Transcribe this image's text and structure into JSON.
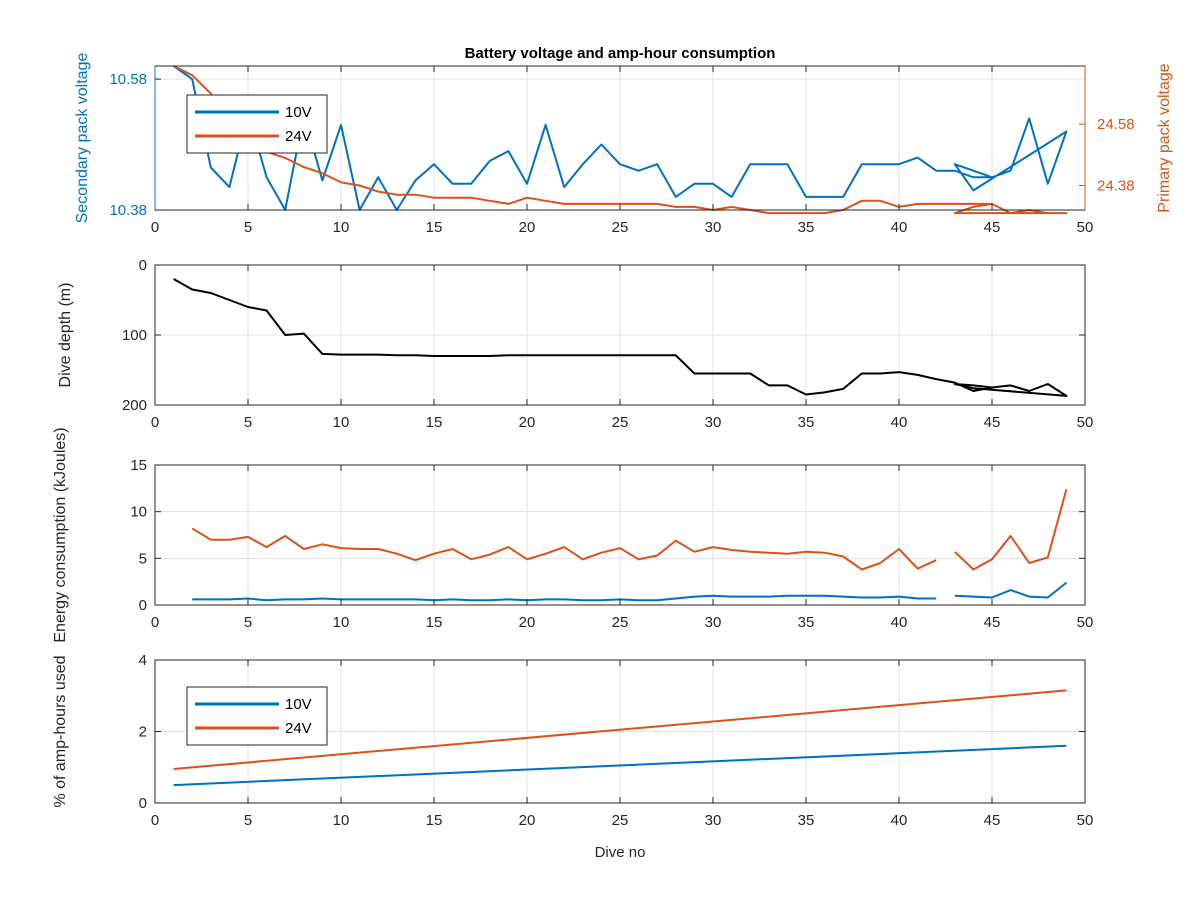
{
  "colors": {
    "blue": "#0072BD",
    "orange": "#D95319",
    "black": "#000000",
    "axis": "#262626",
    "grid": "#e3e3e3"
  },
  "chart_data": [
    {
      "type": "line",
      "title": "Battery voltage and amp-hour consumption",
      "xlabel": "",
      "ylabel_left": "Secondary pack voltage",
      "ylabel_right": "Primary pack voltage",
      "xlim": [
        0,
        50
      ],
      "ylim_left": [
        10.38,
        10.6
      ],
      "ylim_right": [
        24.3,
        24.77
      ],
      "xticks": [
        "0",
        "5",
        "10",
        "15",
        "20",
        "25",
        "30",
        "35",
        "40",
        "45",
        "50"
      ],
      "yticks_left": [
        "10.38",
        "10.58"
      ],
      "yticks_right": [
        "24.38",
        "24.58"
      ],
      "grid": true,
      "legend": "top-left",
      "series": [
        {
          "name": "10V",
          "axis": "left",
          "x": [
            1,
            2,
            3,
            4,
            5,
            6,
            7,
            8,
            9,
            10,
            11,
            12,
            13,
            14,
            15,
            16,
            17,
            18,
            19,
            20,
            21,
            22,
            23,
            24,
            25,
            26,
            27,
            28,
            29,
            30,
            31,
            32,
            33,
            34,
            35,
            36,
            37,
            38,
            39,
            40,
            41,
            42,
            43,
            44,
            45,
            46,
            47,
            48,
            49,
            44,
            43,
            44,
            45,
            46,
            47,
            48,
            49
          ],
          "y": [
            10.6,
            10.58,
            10.445,
            10.415,
            10.53,
            10.43,
            10.38,
            10.525,
            10.425,
            10.51,
            10.38,
            10.43,
            10.38,
            10.425,
            10.45,
            10.42,
            10.42,
            10.455,
            10.47,
            10.42,
            10.51,
            10.415,
            10.45,
            10.48,
            10.45,
            10.44,
            10.45,
            10.4,
            10.42,
            10.42,
            10.4,
            10.45,
            10.45,
            10.45,
            10.4,
            10.4,
            10.4,
            10.45,
            10.45,
            10.45,
            10.46,
            10.44,
            10.44,
            10.43,
            10.43,
            10.44,
            10.52,
            10.42,
            10.5,
            10.41,
            10.45,
            10.44,
            10.43,
            10.44,
            10.52,
            10.42,
            10.5
          ]
        },
        {
          "name": "24V",
          "axis": "right",
          "x": [
            1,
            2,
            3,
            4,
            5,
            6,
            7,
            8,
            9,
            10,
            11,
            12,
            13,
            14,
            15,
            16,
            17,
            18,
            19,
            20,
            21,
            22,
            23,
            24,
            25,
            26,
            27,
            28,
            29,
            30,
            31,
            32,
            33,
            34,
            35,
            36,
            37,
            38,
            39,
            40,
            41,
            42,
            43,
            44,
            45,
            46,
            47,
            48,
            49,
            43,
            44,
            45
          ],
          "y": [
            24.77,
            24.74,
            24.68,
            24.6,
            24.56,
            24.49,
            24.47,
            24.44,
            24.42,
            24.39,
            24.38,
            24.36,
            24.35,
            24.35,
            24.34,
            24.34,
            24.34,
            24.33,
            24.32,
            24.34,
            24.33,
            24.32,
            24.32,
            24.32,
            24.32,
            24.32,
            24.32,
            24.31,
            24.31,
            24.3,
            24.31,
            24.3,
            24.29,
            24.29,
            24.29,
            24.29,
            24.3,
            24.33,
            24.33,
            24.31,
            24.32,
            24.32,
            24.32,
            24.32,
            24.32,
            24.29,
            24.3,
            24.29,
            24.29,
            24.29,
            24.31,
            24.32
          ]
        }
      ]
    },
    {
      "type": "line",
      "title": "",
      "xlabel": "",
      "ylabel": "Dive depth (m)",
      "xlim": [
        0,
        50
      ],
      "ylim": [
        200,
        0
      ],
      "y_reversed": true,
      "xticks": [
        "0",
        "5",
        "10",
        "15",
        "20",
        "25",
        "30",
        "35",
        "40",
        "45",
        "50"
      ],
      "yticks": [
        "0",
        "100",
        "200"
      ],
      "grid": true,
      "series": [
        {
          "name": "",
          "x": [
            1,
            2,
            3,
            4,
            5,
            6,
            7,
            8,
            9,
            10,
            11,
            12,
            13,
            14,
            15,
            16,
            17,
            18,
            19,
            20,
            21,
            22,
            23,
            24,
            25,
            26,
            27,
            28,
            29,
            30,
            31,
            32,
            33,
            34,
            35,
            36,
            37,
            38,
            39,
            40,
            41,
            42,
            43,
            44,
            45,
            46,
            47,
            48,
            49,
            44,
            43,
            44,
            45
          ],
          "y": [
            20,
            35,
            40,
            50,
            60,
            65,
            100,
            98,
            127,
            128,
            128,
            128,
            129,
            129,
            130,
            130,
            130,
            130,
            129,
            129,
            129,
            129,
            129,
            129,
            129,
            129,
            129,
            129,
            155,
            155,
            155,
            155,
            172,
            172,
            185,
            182,
            177,
            155,
            155,
            153,
            157,
            163,
            168,
            180,
            175,
            172,
            180,
            170,
            187,
            176,
            170,
            172,
            175
          ]
        }
      ]
    },
    {
      "type": "line",
      "title": "",
      "xlabel": "",
      "ylabel": "Energy consumption (kJoules)",
      "xlim": [
        0,
        50
      ],
      "ylim": [
        0,
        15
      ],
      "xticks": [
        "0",
        "5",
        "10",
        "15",
        "20",
        "25",
        "30",
        "35",
        "40",
        "45",
        "50"
      ],
      "yticks": [
        "0",
        "5",
        "10",
        "15"
      ],
      "grid": true,
      "series": [
        {
          "name": "10V",
          "x": [
            2,
            3,
            4,
            5,
            6,
            7,
            8,
            9,
            10,
            11,
            12,
            13,
            14,
            15,
            16,
            17,
            18,
            19,
            20,
            21,
            22,
            23,
            24,
            25,
            26,
            27,
            28,
            29,
            30,
            31,
            32,
            33,
            34,
            35,
            36,
            37,
            38,
            39,
            40,
            41,
            42,
            null,
            43,
            44,
            45,
            46,
            47,
            48,
            49
          ],
          "y": [
            0.6,
            0.6,
            0.6,
            0.7,
            0.5,
            0.6,
            0.6,
            0.7,
            0.6,
            0.6,
            0.6,
            0.6,
            0.6,
            0.5,
            0.6,
            0.5,
            0.5,
            0.6,
            0.5,
            0.6,
            0.6,
            0.5,
            0.5,
            0.6,
            0.5,
            0.5,
            0.7,
            0.9,
            1.0,
            0.9,
            0.9,
            0.9,
            1.0,
            1.0,
            1.0,
            0.9,
            0.8,
            0.8,
            0.9,
            0.7,
            0.7,
            null,
            1.0,
            0.9,
            0.8,
            1.6,
            0.9,
            0.8,
            2.4
          ]
        },
        {
          "name": "24V",
          "x": [
            2,
            3,
            4,
            5,
            6,
            7,
            8,
            9,
            10,
            11,
            12,
            13,
            14,
            15,
            16,
            17,
            18,
            19,
            20,
            21,
            22,
            23,
            24,
            25,
            26,
            27,
            28,
            29,
            30,
            31,
            32,
            33,
            34,
            35,
            36,
            37,
            38,
            39,
            40,
            41,
            42,
            null,
            43,
            44,
            45,
            46,
            47,
            48,
            49
          ],
          "y": [
            8.2,
            7.0,
            7.0,
            7.3,
            6.2,
            7.4,
            6.0,
            6.5,
            6.1,
            6.0,
            6.0,
            5.5,
            4.8,
            5.5,
            6.0,
            4.9,
            5.4,
            6.2,
            4.9,
            5.5,
            6.2,
            4.9,
            5.6,
            6.1,
            4.9,
            5.3,
            6.9,
            5.7,
            6.2,
            5.9,
            5.7,
            5.6,
            5.5,
            5.7,
            5.6,
            5.2,
            3.8,
            4.5,
            6.0,
            3.9,
            4.8,
            null,
            5.7,
            3.8,
            4.9,
            7.4,
            4.5,
            5.1,
            12.4
          ]
        }
      ]
    },
    {
      "type": "line",
      "title": "",
      "xlabel": "Dive no",
      "ylabel": "% of amp-hours used",
      "xlim": [
        0,
        50
      ],
      "ylim": [
        0,
        4
      ],
      "xticks": [
        "0",
        "5",
        "10",
        "15",
        "20",
        "25",
        "30",
        "35",
        "40",
        "45",
        "50"
      ],
      "yticks": [
        "0",
        "2",
        "4"
      ],
      "grid": true,
      "legend": "top-left",
      "series": [
        {
          "name": "10V",
          "x": [
            1,
            49
          ],
          "y": [
            0.5,
            1.6
          ]
        },
        {
          "name": "24V",
          "x": [
            1,
            49
          ],
          "y": [
            0.95,
            3.15
          ]
        }
      ]
    }
  ]
}
